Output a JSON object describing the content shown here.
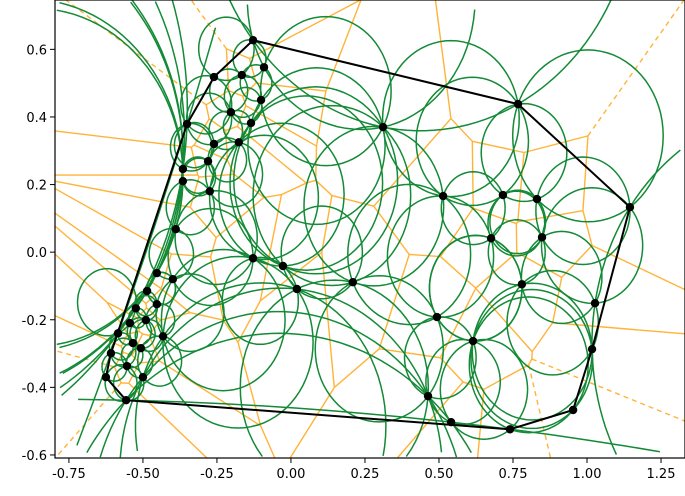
{
  "chart_data": {
    "type": "scatter",
    "title": "",
    "xlabel": "",
    "ylabel": "",
    "xlim": [
      -0.797,
      1.331
    ],
    "ylim": [
      -0.609,
      0.746
    ],
    "grid": false,
    "x_ticks": [
      "-0.75",
      "-0.50",
      "-0.25",
      "0.00",
      "0.25",
      "0.50",
      "0.75",
      "1.00",
      "1.25"
    ],
    "x_tick_values": [
      -0.75,
      -0.5,
      -0.25,
      0,
      0.25,
      0.5,
      0.75,
      1.0,
      1.25
    ],
    "y_ticks": [
      "0.6",
      "0.4",
      "0.2",
      "0.0",
      "-0.2",
      "-0.4",
      "-0.6"
    ],
    "y_tick_values": [
      0.6,
      0.4,
      0.2,
      0,
      -0.2,
      -0.4,
      -0.6
    ],
    "layers": [
      "voronoi diagram",
      "delaunay circumcircles",
      "convex hull",
      "points"
    ],
    "colors": {
      "points": "#000000",
      "circumcircles": "#138a36",
      "voronoi": "#ffb338",
      "hull": "#000000"
    },
    "points": [
      [
        -0.128,
        0.627
      ],
      [
        -0.091,
        0.547
      ],
      [
        -0.26,
        0.518
      ],
      [
        -0.166,
        0.524
      ],
      [
        -0.101,
        0.45
      ],
      [
        -0.203,
        0.414
      ],
      [
        -0.135,
        0.382
      ],
      [
        -0.351,
        0.379
      ],
      [
        -0.26,
        0.32
      ],
      [
        -0.176,
        0.325
      ],
      [
        -0.28,
        0.269
      ],
      [
        -0.365,
        0.246
      ],
      [
        -0.365,
        0.21
      ],
      [
        -0.274,
        0.18
      ],
      [
        -0.389,
        0.068
      ],
      [
        -0.453,
        -0.062
      ],
      [
        -0.399,
        -0.08
      ],
      [
        -0.486,
        -0.115
      ],
      [
        -0.453,
        -0.154
      ],
      [
        -0.524,
        -0.166
      ],
      [
        -0.544,
        -0.21
      ],
      [
        -0.49,
        -0.201
      ],
      [
        -0.432,
        -0.249
      ],
      [
        -0.584,
        -0.24
      ],
      [
        -0.534,
        -0.269
      ],
      [
        -0.507,
        -0.284
      ],
      [
        -0.608,
        -0.299
      ],
      [
        -0.554,
        -0.337
      ],
      [
        -0.5,
        -0.37
      ],
      [
        -0.625,
        -0.37
      ],
      [
        -0.557,
        -0.438
      ],
      [
        -0.128,
        -0.018
      ],
      [
        -0.027,
        -0.041
      ],
      [
        0.02,
        -0.109
      ],
      [
        0.209,
        -0.089
      ],
      [
        0.311,
        0.37
      ],
      [
        0.767,
        0.438
      ],
      [
        0.514,
        0.166
      ],
      [
        0.716,
        0.169
      ],
      [
        0.831,
        0.157
      ],
      [
        1.145,
        0.133
      ],
      [
        0.676,
        0.041
      ],
      [
        0.848,
        0.044
      ],
      [
        0.78,
        -0.095
      ],
      [
        1.027,
        -0.151
      ],
      [
        0.493,
        -0.192
      ],
      [
        0.615,
        -0.263
      ],
      [
        1.017,
        -0.287
      ],
      [
        0.463,
        -0.426
      ],
      [
        0.953,
        -0.467
      ],
      [
        0.541,
        -0.503
      ],
      [
        0.74,
        -0.524
      ]
    ]
  }
}
